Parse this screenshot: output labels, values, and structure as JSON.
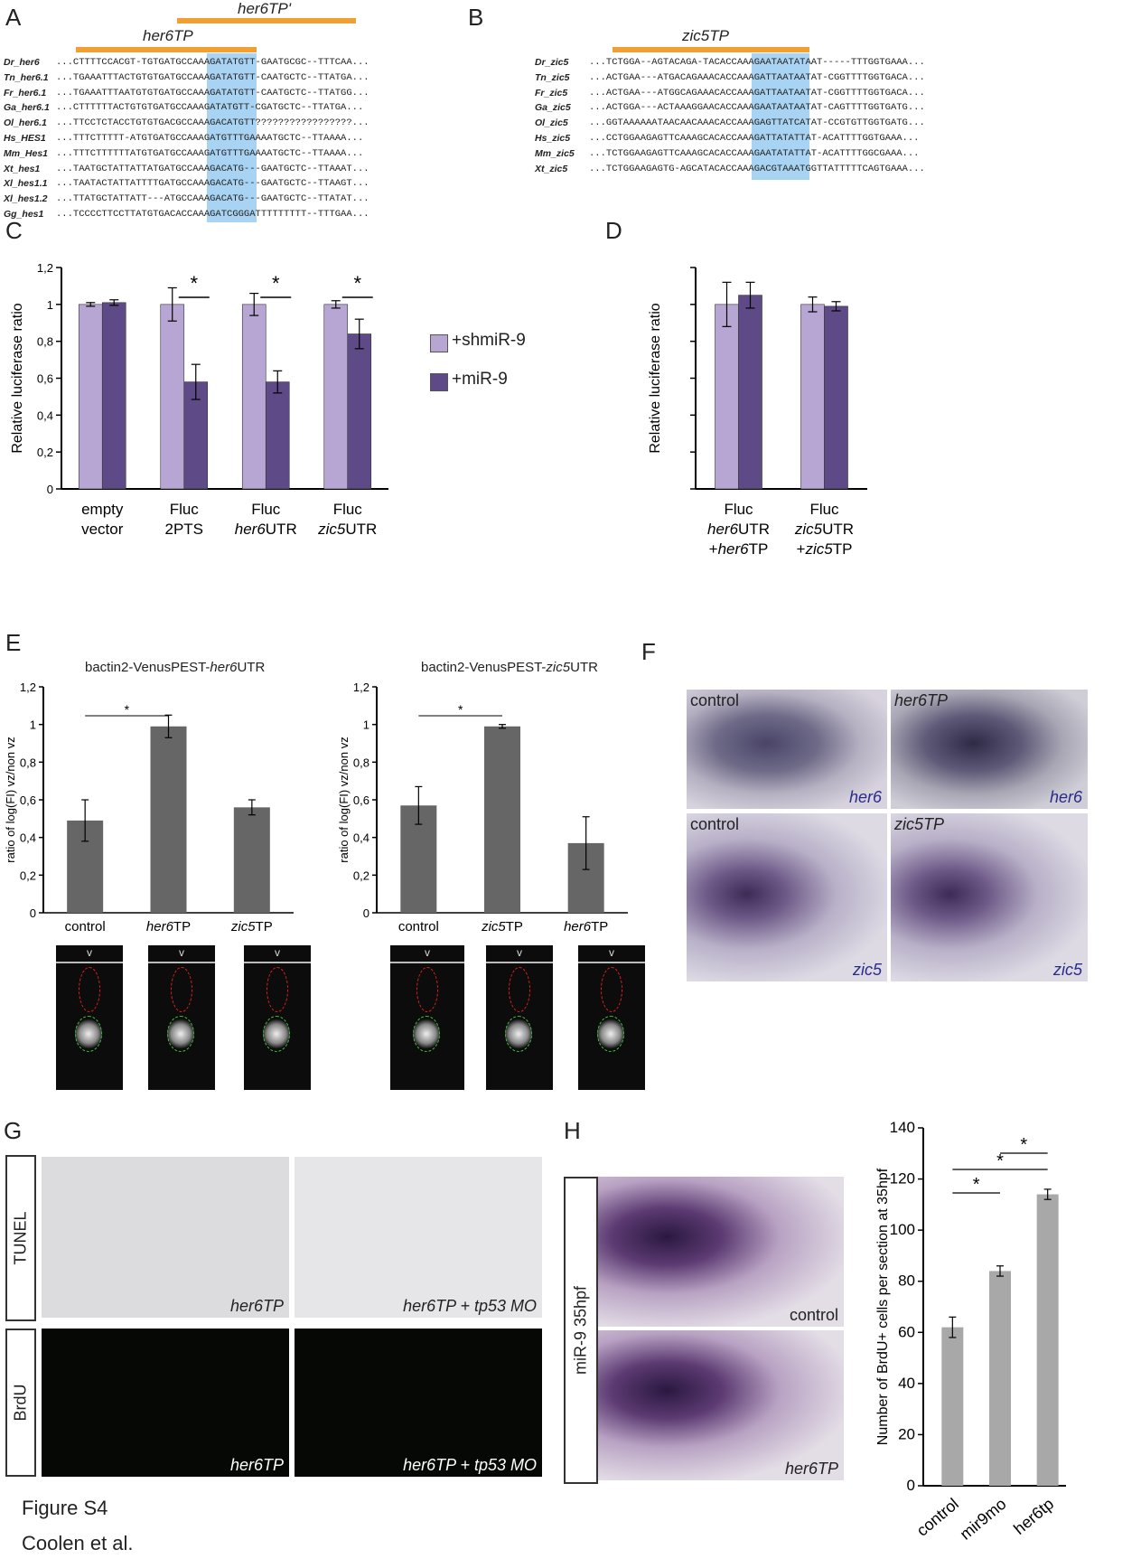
{
  "panels": {
    "A": "A",
    "B": "B",
    "C": "C",
    "D": "D",
    "E": "E",
    "F": "F",
    "G": "G",
    "H": "H"
  },
  "panelA": {
    "tp_labels": [
      "her6TP",
      "her6TP'"
    ],
    "rows": [
      {
        "name": "Dr_her6",
        "seq": "...CTTTTCCACGT-TGTGATGCCAAAGATATGTT-GAATGCGC--TTTCAA..."
      },
      {
        "name": "Tn_her6.1",
        "seq": "...TGAAATTTACTGTGTGATGCCAAAGATATGTT-CAATGCTC--TTATGA..."
      },
      {
        "name": "Fr_her6.1",
        "seq": "...TGAAATTTAATGTGTGATGCCAAAGATATGTT-CAATGCTC--TTATGG..."
      },
      {
        "name": "Ga_her6.1",
        "seq": "...CTTTTTTACTGTGTGATGCCAAAGATATGTT-CGATGCTC--TTATGA..."
      },
      {
        "name": "Ol_her6.1",
        "seq": "...TTCCTCTACCTGTGTGACGCCAAAGACATGTT?????????????????..."
      },
      {
        "name": "Hs_HES1",
        "seq": "...TTTCTTTTT-ATGTGATGCCAAAGATGTTTGAAAATGCTC--TTAAAA..."
      },
      {
        "name": "Mm_Hes1",
        "seq": "...TTTCTTTTTTATGTGATGCCAAAGATGTTTGAAAATGCTC--TTAAAA..."
      },
      {
        "name": "Xt_hes1",
        "seq": "...TAATGCTATTATTATGATGCCAAAGACATG---GAATGCTC--TTAAAT..."
      },
      {
        "name": "Xl_hes1.1",
        "seq": "...TAATACTATTATTTTGATGCCAAAGACATG---GAATGCTC--TTAAGT..."
      },
      {
        "name": "Xl_hes1.2",
        "seq": "...TTATGCTATTATT---ATGCCAAAGACATG---GAATGCTC--TTATAT..."
      },
      {
        "name": "Gg_hes1",
        "seq": "...TCCCCTTCCTTATGTGACACCAAAGATCGGGATTTTTTTTT--TTTGAA..."
      }
    ]
  },
  "panelB": {
    "tp_label": "zic5TP",
    "rows": [
      {
        "name": "Dr_zic5",
        "seq": "...TCTGGA--AGTACAGA-TACACCAAAGAATAATATAAT-----TTTGGTGAAA..."
      },
      {
        "name": "Tn_zic5",
        "seq": "...ACTGAA---ATGACAGAAACACCAAAGATTAATAATAT-CGGTTTTGGTGACA..."
      },
      {
        "name": "Fr_zic5",
        "seq": "...ACTGAA---ATGGCAGAAACACCAAAGATTAATAATAT-CGGTTTTGGTGACA..."
      },
      {
        "name": "Ga_zic5",
        "seq": "...ACTGGA---ACTAAAGGAACACCAAAGAATAATAATAT-CAGTTTTGGTGATG..."
      },
      {
        "name": "Ol_zic5",
        "seq": "...GGTAAAAAATAACAACAAACACCAAAGAGTTATCATAT-CCGTGTTGGTGATG..."
      },
      {
        "name": "Hs_zic5",
        "seq": "...CCTGGAAGAGTTCAAAGCACACCAAAGATTATATTAT-ACATTTTGGTGAAA..."
      },
      {
        "name": "Mm_zic5",
        "seq": "...TCTGGAAGAGTTCAAAGCACACCAAAGAATATATTAT-ACATTTTGGCGAAA..."
      },
      {
        "name": "Xt_zic5",
        "seq": "...TCTGGAAGAGTG-AGCATACACCAAAGACGTAAATGGTTATTTTTCAGTGAAA..."
      }
    ]
  },
  "chart_data": [
    {
      "id": "C",
      "type": "bar",
      "categories": [
        [
          "empty",
          "vector"
        ],
        [
          "Fluc",
          "2PTS"
        ],
        [
          "Fluc",
          "her6UTR"
        ],
        [
          "Fluc",
          "zic5UTR"
        ]
      ],
      "series": [
        {
          "name": "+shmiR-9",
          "values": [
            1.0,
            1.0,
            1.0,
            1.0
          ],
          "errors": [
            0.01,
            0.09,
            0.06,
            0.02
          ],
          "color": "#b7a6d3"
        },
        {
          "name": "+miR-9",
          "values": [
            1.01,
            0.58,
            0.58,
            0.84
          ],
          "errors": [
            0.015,
            0.095,
            0.06,
            0.08
          ],
          "color": "#5e4a86"
        }
      ],
      "ylabel": "Relative luciferase ratio",
      "ylim": [
        0,
        1.2
      ],
      "yticks": [
        "0",
        "0,2",
        "0,4",
        "0,6",
        "0,8",
        "1",
        "1,2"
      ],
      "significance": [
        "*",
        "*",
        "*"
      ]
    },
    {
      "id": "D",
      "type": "bar",
      "categories": [
        [
          "Fluc",
          "her6UTR",
          "+her6TP"
        ],
        [
          "Fluc",
          "zic5UTR",
          "+zic5TP"
        ]
      ],
      "series": [
        {
          "name": "+shmiR-9",
          "values": [
            1.0,
            1.0
          ],
          "errors": [
            0.12,
            0.04
          ]
        },
        {
          "name": "+miR-9",
          "values": [
            1.05,
            0.99
          ],
          "errors": [
            0.07,
            0.025
          ]
        }
      ],
      "ylabel": "Relative luciferase ratio",
      "ylim": [
        0,
        1.2
      ]
    },
    {
      "id": "E1",
      "type": "bar",
      "title": "bactin2-VenusPEST-her6UTR",
      "categories": [
        "control",
        "her6TP",
        "zic5TP"
      ],
      "values": [
        0.49,
        0.99,
        0.56
      ],
      "errors": [
        0.11,
        0.06,
        0.04
      ],
      "ylabel": "ratio of log(FI) vz/non vz",
      "ylim": [
        0,
        1.2
      ],
      "yticks": [
        "0",
        "0,2",
        "0,4",
        "0,6",
        "0,8",
        "1",
        "1,2"
      ],
      "significance": "*"
    },
    {
      "id": "E2",
      "type": "bar",
      "title": "bactin2-VenusPEST-zic5UTR",
      "categories": [
        "control",
        "zic5TP",
        "her6TP"
      ],
      "values": [
        0.57,
        0.99,
        0.37
      ],
      "errors": [
        0.1,
        0.01,
        0.14
      ],
      "ylabel": "ratio of log(FI) vz/non vz",
      "ylim": [
        0,
        1.2
      ],
      "yticks": [
        "0",
        "0,2",
        "0,4",
        "0,6",
        "0,8",
        "1",
        "1,2"
      ],
      "significance": "*"
    },
    {
      "id": "H",
      "type": "bar",
      "categories": [
        "control",
        "mir9mo",
        "her6tp"
      ],
      "values": [
        62,
        84,
        114
      ],
      "errors": [
        4,
        2,
        2
      ],
      "ylabel": "Number of BrdU+ cells per section at 35hpf",
      "ylim": [
        0,
        140
      ],
      "yticks": [
        "0",
        "20",
        "40",
        "60",
        "80",
        "100",
        "120",
        "140"
      ],
      "significance": [
        "*",
        "*",
        "*"
      ]
    }
  ],
  "panelE": {
    "v_label": "v"
  },
  "panelF": {
    "labels": [
      "control",
      "her6TP",
      "control",
      "zic5TP"
    ],
    "gene_labels": [
      "her6",
      "her6",
      "zic5",
      "zic5"
    ]
  },
  "panelG": {
    "row_labels": [
      "TUNEL",
      "BrdU"
    ],
    "captions": [
      "her6TP",
      "her6TP + tp53 MO",
      "her6TP",
      "her6TP + tp53 MO"
    ]
  },
  "panelH": {
    "side_label": "miR-9 35hpf",
    "captions": [
      "control",
      "her6TP"
    ]
  },
  "footer": {
    "figure": "Figure S4",
    "authors": "Coolen et al."
  },
  "colors": {
    "light_purple": "#b7a6d3",
    "dark_purple": "#5e4a86",
    "gray_bar": "#666666",
    "light_gray_bar": "#a8a8a8",
    "orange": "#f0a030",
    "highlight_blue": "#a9d3f2"
  }
}
